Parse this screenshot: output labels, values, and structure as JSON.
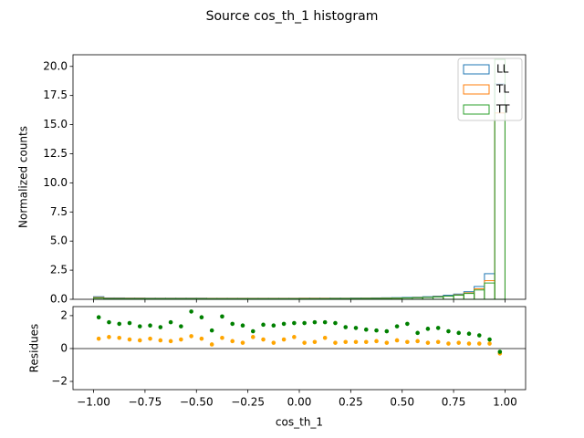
{
  "chart_data": [
    {
      "type": "histogram",
      "title": "Source cos_th_1 histogram",
      "ylabel": "Normalized counts",
      "bins": [
        -1.0,
        -0.95,
        -0.9,
        -0.85,
        -0.8,
        -0.75,
        -0.7,
        -0.65,
        -0.6,
        -0.55,
        -0.5,
        -0.45,
        -0.4,
        -0.35,
        -0.3,
        -0.25,
        -0.2,
        -0.15,
        -0.1,
        -0.05,
        0.0,
        0.05,
        0.1,
        0.15,
        0.2,
        0.25,
        0.3,
        0.35,
        0.4,
        0.45,
        0.5,
        0.55,
        0.6,
        0.65,
        0.7,
        0.75,
        0.8,
        0.85,
        0.9,
        0.95,
        1.0
      ],
      "series": [
        {
          "name": "LL",
          "color": "#1f77b4",
          "values": [
            0.22,
            0.12,
            0.12,
            0.11,
            0.11,
            0.1,
            0.1,
            0.1,
            0.1,
            0.1,
            0.1,
            0.09,
            0.09,
            0.09,
            0.09,
            0.09,
            0.09,
            0.09,
            0.09,
            0.09,
            0.1,
            0.1,
            0.1,
            0.1,
            0.1,
            0.11,
            0.11,
            0.12,
            0.13,
            0.14,
            0.16,
            0.18,
            0.22,
            0.27,
            0.35,
            0.45,
            0.65,
            1.1,
            2.2,
            18.5
          ]
        },
        {
          "name": "TL",
          "color": "#ff7f0e",
          "values": [
            0.15,
            0.08,
            0.08,
            0.08,
            0.08,
            0.07,
            0.07,
            0.07,
            0.07,
            0.07,
            0.07,
            0.07,
            0.07,
            0.07,
            0.07,
            0.07,
            0.07,
            0.07,
            0.07,
            0.07,
            0.08,
            0.08,
            0.08,
            0.08,
            0.08,
            0.08,
            0.09,
            0.09,
            0.1,
            0.1,
            0.12,
            0.14,
            0.17,
            0.22,
            0.28,
            0.38,
            0.55,
            0.9,
            1.6,
            16.0
          ]
        },
        {
          "name": "TT",
          "color": "#2ca02c",
          "values": [
            0.1,
            0.05,
            0.05,
            0.05,
            0.05,
            0.05,
            0.05,
            0.05,
            0.05,
            0.05,
            0.05,
            0.05,
            0.05,
            0.05,
            0.05,
            0.05,
            0.05,
            0.05,
            0.05,
            0.05,
            0.05,
            0.05,
            0.05,
            0.06,
            0.06,
            0.06,
            0.07,
            0.07,
            0.08,
            0.09,
            0.11,
            0.13,
            0.16,
            0.2,
            0.27,
            0.35,
            0.5,
            0.8,
            1.4,
            20.6
          ]
        }
      ],
      "xlim": [
        -1.1,
        1.1
      ],
      "ylim": [
        0,
        21.0
      ],
      "xticks": [
        -1.0,
        -0.75,
        -0.5,
        -0.25,
        0.0,
        0.25,
        0.5,
        0.75,
        1.0
      ],
      "yticks": [
        {
          "value": 0,
          "label": "0.0"
        },
        {
          "value": 2.5,
          "label": "2.5"
        },
        {
          "value": 5,
          "label": "5.0"
        },
        {
          "value": 7.5,
          "label": "7.5"
        },
        {
          "value": 10,
          "label": "10.0"
        },
        {
          "value": 12.5,
          "label": "12.5"
        },
        {
          "value": 15,
          "label": "15.0"
        },
        {
          "value": 17.5,
          "label": "17.5"
        },
        {
          "value": 20,
          "label": "20.0"
        }
      ],
      "legend": "upper right"
    },
    {
      "type": "scatter",
      "ylabel": "Residues",
      "xlabel": "cos_th_1",
      "x": [
        -0.975,
        -0.925,
        -0.875,
        -0.825,
        -0.775,
        -0.725,
        -0.675,
        -0.625,
        -0.575,
        -0.525,
        -0.475,
        -0.425,
        -0.375,
        -0.325,
        -0.275,
        -0.225,
        -0.175,
        -0.125,
        -0.075,
        -0.025,
        0.025,
        0.075,
        0.125,
        0.175,
        0.225,
        0.275,
        0.325,
        0.375,
        0.425,
        0.475,
        0.525,
        0.575,
        0.625,
        0.675,
        0.725,
        0.775,
        0.825,
        0.875,
        0.925,
        0.975
      ],
      "series": [
        {
          "color": "#ffa500",
          "values": [
            0.6,
            0.7,
            0.65,
            0.55,
            0.5,
            0.6,
            0.5,
            0.45,
            0.55,
            0.75,
            0.6,
            0.25,
            0.65,
            0.45,
            0.35,
            0.7,
            0.55,
            0.35,
            0.55,
            0.7,
            0.35,
            0.4,
            0.65,
            0.35,
            0.4,
            0.4,
            0.4,
            0.45,
            0.35,
            0.5,
            0.4,
            0.45,
            0.35,
            0.4,
            0.3,
            0.35,
            0.3,
            0.3,
            0.3,
            -0.3
          ]
        },
        {
          "color": "#008000",
          "values": [
            1.9,
            1.6,
            1.5,
            1.55,
            1.35,
            1.4,
            1.3,
            1.6,
            1.35,
            2.25,
            1.9,
            1.1,
            1.95,
            1.5,
            1.4,
            1.05,
            1.45,
            1.4,
            1.5,
            1.55,
            1.55,
            1.6,
            1.6,
            1.55,
            1.3,
            1.25,
            1.15,
            1.1,
            1.05,
            1.35,
            1.5,
            0.95,
            1.2,
            1.25,
            1.05,
            0.95,
            0.9,
            0.8,
            0.55,
            -0.2
          ]
        }
      ],
      "reference_line": 0,
      "xlim": [
        -1.1,
        1.1
      ],
      "ylim": [
        -2.5,
        2.55
      ],
      "xticks": [
        {
          "value": -1.0,
          "label": "−1.00"
        },
        {
          "value": -0.75,
          "label": "−0.75"
        },
        {
          "value": -0.5,
          "label": "−0.50"
        },
        {
          "value": -0.25,
          "label": "−0.25"
        },
        {
          "value": 0,
          "label": "0.00"
        },
        {
          "value": 0.25,
          "label": "0.25"
        },
        {
          "value": 0.5,
          "label": "0.50"
        },
        {
          "value": 0.75,
          "label": "0.75"
        },
        {
          "value": 1.0,
          "label": "1.00"
        }
      ],
      "yticks": [
        {
          "value": -2,
          "label": "−2"
        },
        0,
        2
      ]
    }
  ]
}
